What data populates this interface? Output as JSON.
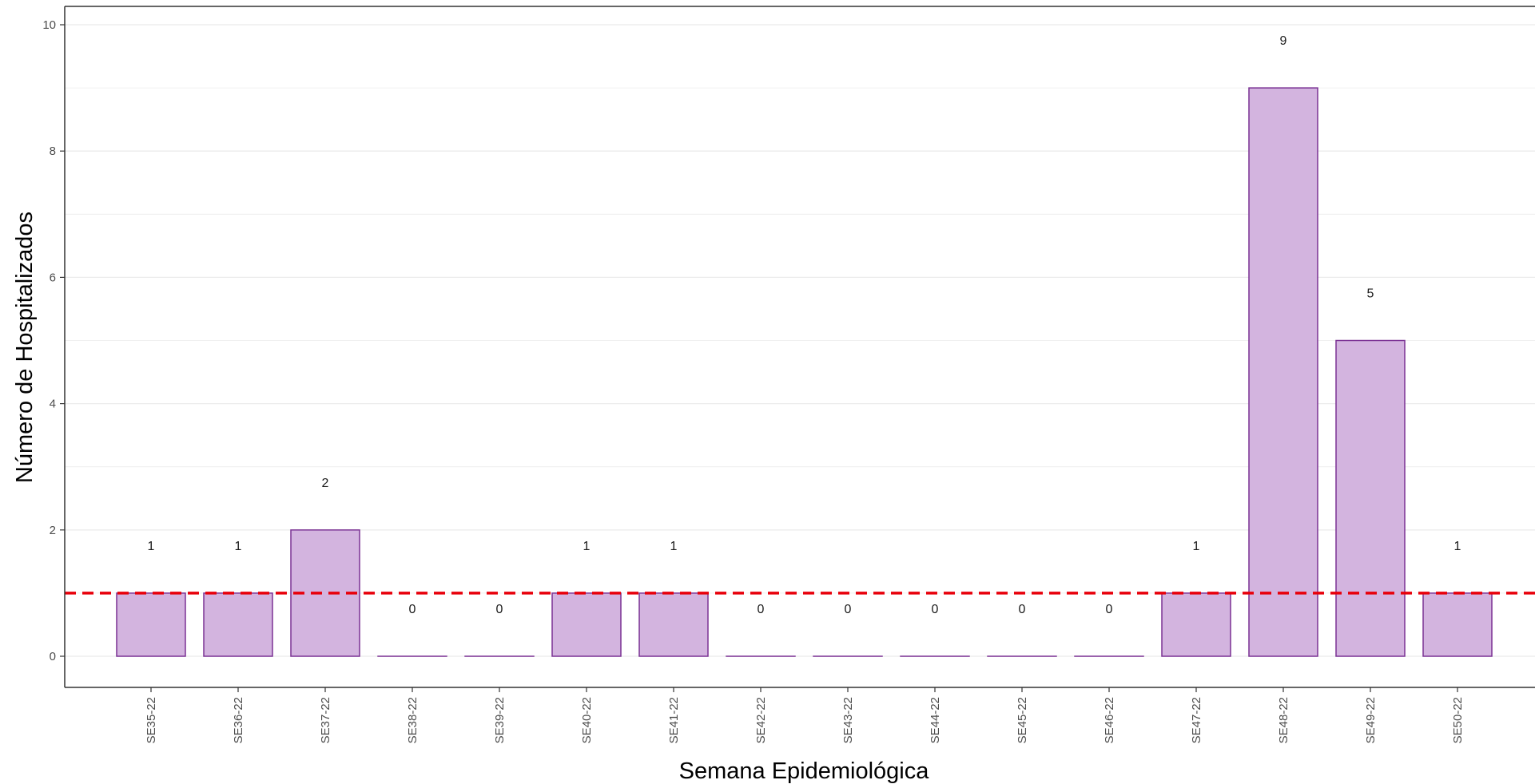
{
  "chart_data": {
    "type": "bar",
    "xlabel": "Semana Epidemiológica",
    "ylabel": "Número de Hospitalizados",
    "categories": [
      "SE35-22",
      "SE36-22",
      "SE37-22",
      "SE38-22",
      "SE39-22",
      "SE40-22",
      "SE41-22",
      "SE42-22",
      "SE43-22",
      "SE44-22",
      "SE45-22",
      "SE46-22",
      "SE47-22",
      "SE48-22",
      "SE49-22",
      "SE50-22"
    ],
    "values": [
      1,
      1,
      2,
      0,
      0,
      1,
      1,
      0,
      0,
      0,
      0,
      0,
      1,
      9,
      5,
      1
    ],
    "ylim": [
      -0.5,
      10.3
    ],
    "yticks": [
      0,
      2,
      4,
      6,
      8,
      10
    ],
    "grid": true,
    "legend": "none",
    "reference_line": {
      "value": 1,
      "style": "dashed"
    },
    "colors": {
      "bar_fill": "#d3b4df",
      "bar_stroke": "#7b3294",
      "reference_line": "#e8000b",
      "grid": "#ebebeb"
    }
  }
}
